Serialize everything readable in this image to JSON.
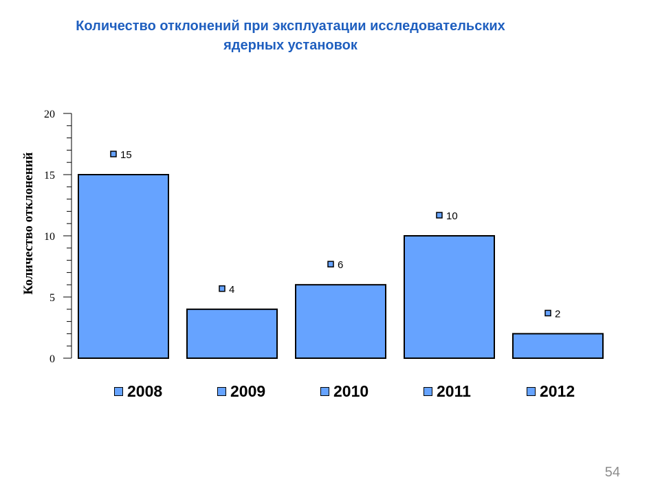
{
  "slide": {
    "title_line1": "Количество отклонений при эксплуатации исследовательских",
    "title_line2": "ядерных установок",
    "page_number": "54"
  },
  "colors": {
    "title": "#1f5fbf",
    "bar_fill": "#66a3ff",
    "bar_stroke": "#000000"
  },
  "chart_data": {
    "type": "bar",
    "title": "Количество отклонений при эксплуатации исследовательских ядерных установок",
    "ylabel": "Количество отклонений",
    "xlabel": "",
    "ylim": [
      0,
      20
    ],
    "yticks": [
      "0",
      "5",
      "10",
      "15",
      "20"
    ],
    "categories": [
      "2008",
      "2009",
      "2010",
      "2011",
      "2012"
    ],
    "values": [
      15,
      4,
      6,
      10,
      2
    ],
    "value_labels": [
      "15",
      "4",
      "6",
      "10",
      "2"
    ],
    "legend": [
      "2008",
      "2009",
      "2010",
      "2011",
      "2012"
    ],
    "legend_position": "bottom",
    "grid": false
  }
}
